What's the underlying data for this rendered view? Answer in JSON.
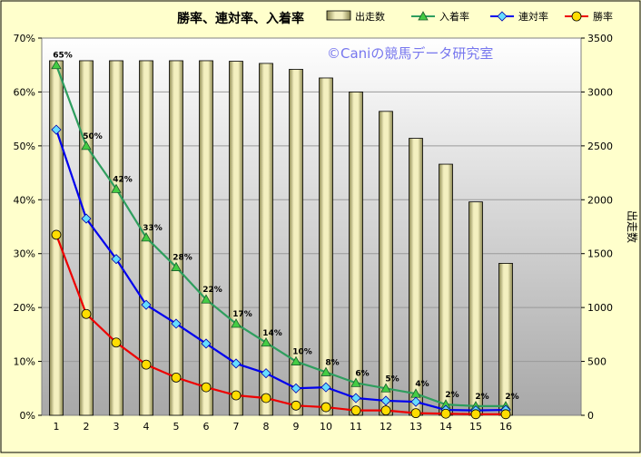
{
  "chart_data": {
    "type": "bar",
    "title": "勝率、連対率、入着率",
    "watermark": "©Caniの競馬データ研究室",
    "categories": [
      "1",
      "2",
      "3",
      "4",
      "5",
      "6",
      "7",
      "8",
      "9",
      "10",
      "11",
      "12",
      "13",
      "14",
      "15",
      "16"
    ],
    "left_axis": {
      "ylim": [
        0,
        70
      ],
      "ticks": [
        "0%",
        "10%",
        "20%",
        "30%",
        "40%",
        "50%",
        "60%",
        "70%"
      ]
    },
    "right_axis": {
      "label": "出走数",
      "ylim": [
        0,
        3500
      ],
      "ticks": [
        "0",
        "500",
        "1000",
        "1500",
        "2000",
        "2500",
        "3000",
        "3500"
      ]
    },
    "legend_position": "top",
    "series": [
      {
        "name": "出走数",
        "kind": "bar",
        "axis": "right",
        "color": "#e8e4a8",
        "values": [
          3290,
          3290,
          3290,
          3290,
          3290,
          3290,
          3285,
          3265,
          3210,
          3130,
          3000,
          2820,
          2570,
          2330,
          1980,
          1410
        ]
      },
      {
        "name": "入着率",
        "kind": "line",
        "axis": "left",
        "color": "#2e9e5e",
        "marker": "triangle",
        "marker_color": "#44cc44",
        "values": [
          65,
          50,
          42,
          33,
          27.5,
          21.5,
          17,
          13.5,
          10,
          8,
          6,
          5,
          4,
          2,
          1.7,
          1.7
        ],
        "labels": [
          "65%",
          "50%",
          "42%",
          "33%",
          "28%",
          "22%",
          "17%",
          "14%",
          "10%",
          "8%",
          "6%",
          "5%",
          "4%",
          "2%",
          "2%",
          "2%"
        ]
      },
      {
        "name": "連対率",
        "kind": "line",
        "axis": "left",
        "color": "#0000ee",
        "marker": "diamond",
        "marker_color": "#66ddff",
        "values": [
          53,
          36.5,
          29,
          20.5,
          17,
          13.3,
          9.6,
          7.8,
          5,
          5.2,
          3.2,
          2.7,
          2.5,
          1,
          0.9,
          1
        ]
      },
      {
        "name": "勝率",
        "kind": "line",
        "axis": "left",
        "color": "#ee0000",
        "marker": "circle",
        "marker_color": "#ffdd00",
        "values": [
          33.5,
          18.8,
          13.5,
          9.4,
          7,
          5.2,
          3.7,
          3.2,
          1.8,
          1.5,
          0.9,
          0.9,
          0.4,
          0.3,
          0.2,
          0.2
        ]
      }
    ]
  }
}
